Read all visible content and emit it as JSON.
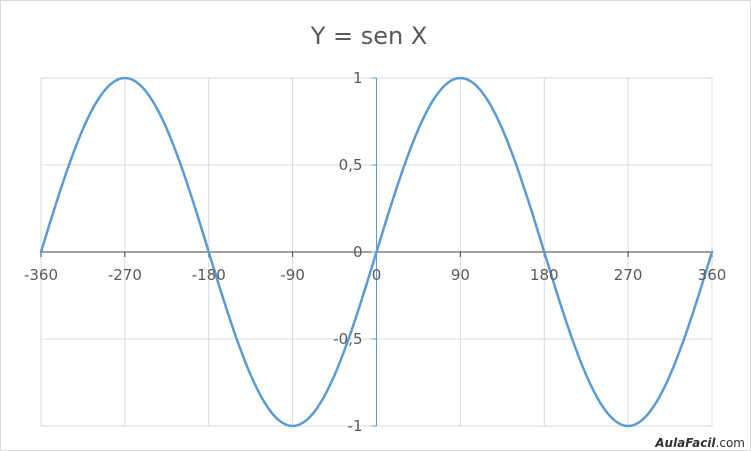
{
  "chart_data": {
    "type": "line",
    "title": "Y = sen X",
    "xlabel": "",
    "ylabel": "",
    "xlim": [
      -360,
      360
    ],
    "ylim": [
      -1,
      1
    ],
    "x_ticks": [
      -360,
      -270,
      -180,
      -90,
      0,
      90,
      180,
      270,
      360
    ],
    "x_tick_labels": [
      "-360",
      "-270",
      "-180",
      "-90",
      "0",
      "90",
      "180",
      "270",
      "360"
    ],
    "y_ticks": [
      1,
      0.5,
      0,
      -0.5,
      -1
    ],
    "y_tick_labels": [
      "1",
      "0,5",
      "0",
      "-0,5",
      "-1"
    ],
    "grid": true,
    "legend": "none",
    "series": [
      {
        "color": "#5b9bd5",
        "x": [
          -360,
          -345,
          -330,
          -315,
          -300,
          -285,
          -270,
          -255,
          -240,
          -225,
          -210,
          -195,
          -180,
          -165,
          -150,
          -135,
          -120,
          -105,
          -90,
          -75,
          -60,
          -45,
          -30,
          -15,
          0,
          15,
          30,
          45,
          60,
          75,
          90,
          105,
          120,
          135,
          150,
          165,
          180,
          195,
          210,
          225,
          240,
          255,
          270,
          285,
          300,
          315,
          330,
          345,
          360
        ],
        "y": [
          0,
          0.259,
          0.5,
          0.707,
          0.866,
          0.966,
          1,
          0.966,
          0.866,
          0.707,
          0.5,
          0.259,
          0,
          -0.259,
          -0.5,
          -0.707,
          -0.866,
          -0.966,
          -1,
          -0.966,
          -0.866,
          -0.707,
          -0.5,
          -0.259,
          0,
          0.259,
          0.5,
          0.707,
          0.866,
          0.966,
          1,
          0.966,
          0.866,
          0.707,
          0.5,
          0.259,
          0,
          -0.259,
          -0.5,
          -0.707,
          -0.866,
          -0.966,
          -1,
          -0.966,
          -0.866,
          -0.707,
          -0.5,
          -0.259,
          0
        ]
      }
    ]
  },
  "colors": {
    "grid": "#d9d9d9",
    "x_axis": "#404040",
    "y_axis": "#5b9bd5",
    "text": "#595959"
  },
  "watermark": {
    "brand": "AulaFacil",
    "suffix": ".com"
  }
}
